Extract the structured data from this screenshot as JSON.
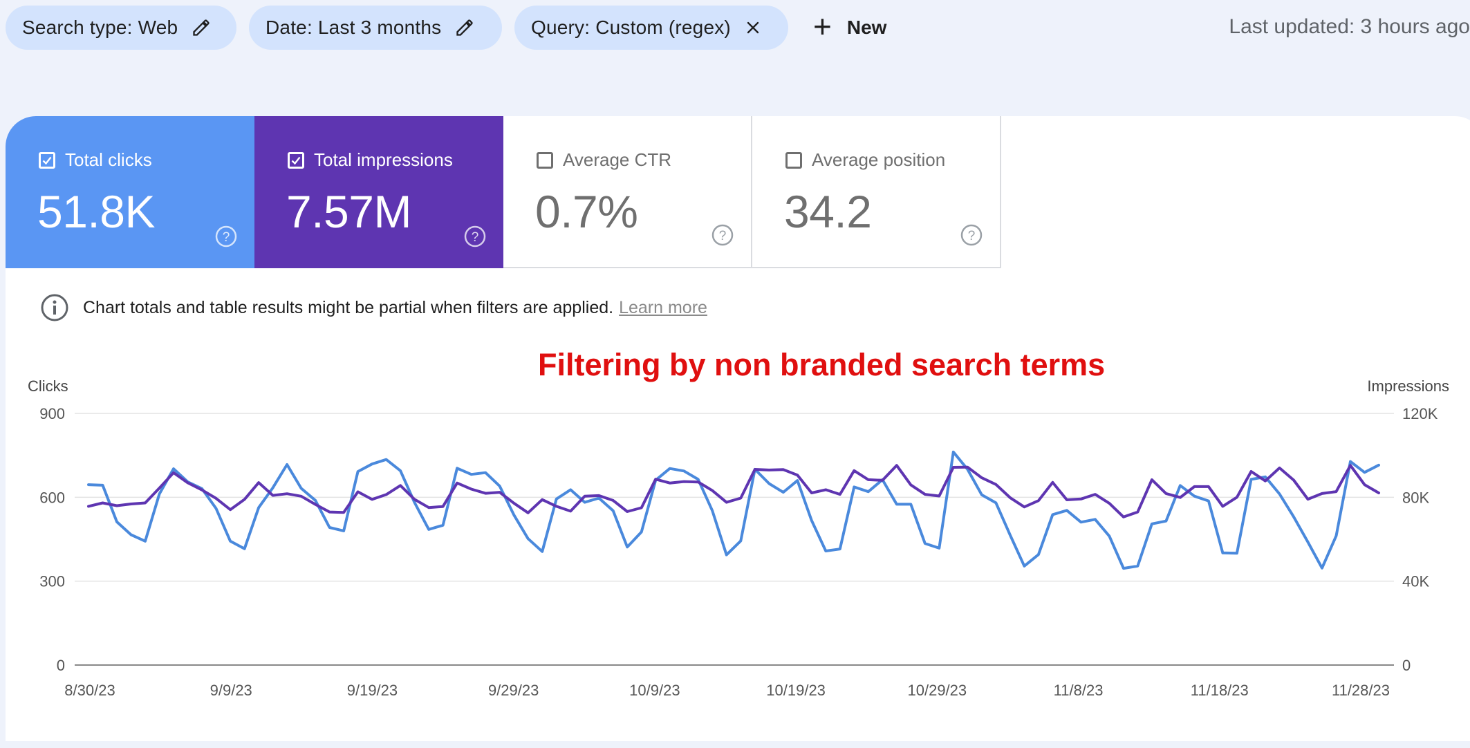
{
  "filters": {
    "search_type": "Search type: Web",
    "date": "Date: Last 3 months",
    "query": "Query: Custom (regex)",
    "new_label": "New"
  },
  "last_updated": "Last updated: 3 hours ago",
  "metrics": {
    "clicks": {
      "label": "Total clicks",
      "value": "51.8K",
      "checked": true,
      "color": "#5a96f3"
    },
    "impressions": {
      "label": "Total impressions",
      "value": "7.57M",
      "checked": true,
      "color": "#5e35b1"
    },
    "ctr": {
      "label": "Average CTR",
      "value": "0.7%",
      "checked": false
    },
    "position": {
      "label": "Average position",
      "value": "34.2",
      "checked": false
    }
  },
  "notice": {
    "text": "Chart totals and table results might be partial when filters are applied.",
    "link": "Learn more"
  },
  "annotation": "Filtering by non branded search terms",
  "chart_data": {
    "type": "line",
    "left_axis_label": "Clicks",
    "right_axis_label": "Impressions",
    "left_ticks": [
      "0",
      "300",
      "600",
      "900"
    ],
    "right_ticks": [
      "0",
      "40K",
      "80K",
      "120K"
    ],
    "ylim_left": [
      0,
      900
    ],
    "ylim_right": [
      0,
      120000
    ],
    "x_tick_labels": [
      "8/30/23",
      "9/9/23",
      "9/19/23",
      "9/29/23",
      "10/9/23",
      "10/19/23",
      "10/29/23",
      "11/8/23",
      "11/18/23",
      "11/28/23"
    ],
    "x_start": "2023-08-30",
    "x_end": "2023-11-30",
    "grid": true,
    "series": [
      {
        "name": "Total clicks",
        "axis": "left",
        "color": "#4a89dc",
        "values": [
          645,
          643,
          512,
          466,
          443,
          612,
          702,
          655,
          631,
          560,
          443,
          416,
          563,
          634,
          717,
          632,
          589,
          492,
          480,
          692,
          719,
          735,
          695,
          581,
          485,
          500,
          704,
          682,
          688,
          640,
          537,
          452,
          406,
          594,
          627,
          582,
          597,
          552,
          422,
          476,
          661,
          703,
          694,
          664,
          552,
          394,
          444,
          700,
          649,
          618,
          660,
          517,
          408,
          415,
          637,
          620,
          663,
          575,
          575,
          435,
          418,
          762,
          700,
          609,
          580,
          465,
          354,
          395,
          538,
          553,
          511,
          521,
          461,
          346,
          354,
          505,
          515,
          642,
          604,
          587,
          401,
          400,
          664,
          673,
          612,
          530,
          440,
          347,
          462,
          728,
          689,
          715
        ]
      },
      {
        "name": "Total impressions",
        "axis": "right",
        "color": "#5e35b1",
        "values": [
          75700,
          77300,
          76000,
          76800,
          77300,
          84400,
          91700,
          86900,
          83500,
          79500,
          74100,
          79000,
          87000,
          80900,
          81700,
          80500,
          76600,
          73000,
          72800,
          82600,
          79000,
          81300,
          85600,
          79000,
          75100,
          75600,
          86800,
          83900,
          81900,
          82400,
          77200,
          72600,
          78900,
          75700,
          73400,
          80500,
          80800,
          78500,
          73200,
          75000,
          88600,
          86800,
          87500,
          87300,
          83200,
          77600,
          79600,
          93300,
          93000,
          93200,
          90600,
          82100,
          83600,
          81400,
          92700,
          88400,
          88100,
          95200,
          85900,
          81400,
          80600,
          94300,
          94400,
          89300,
          86100,
          79800,
          75400,
          78400,
          87100,
          78800,
          79200,
          81400,
          77100,
          70600,
          73000,
          88400,
          81800,
          79900,
          85100,
          85100,
          75700,
          80000,
          92300,
          87800,
          94000,
          88200,
          79100,
          81800,
          82700,
          95200,
          86000,
          82100
        ]
      }
    ]
  }
}
